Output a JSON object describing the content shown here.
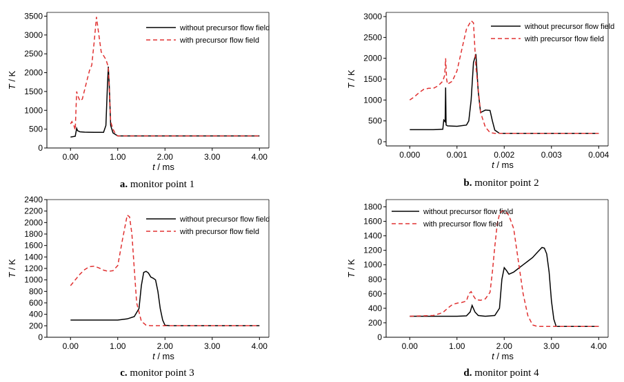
{
  "chart_data": [
    {
      "type": "line",
      "caption_letter": "a.",
      "caption_text": "monitor point 1",
      "xlabel_var": "t",
      "xlabel_unit": " / ms",
      "ylabel_var": "T",
      "ylabel_unit": " / K",
      "xlim": [
        -0.5,
        4.2
      ],
      "ylim": [
        0,
        3600
      ],
      "xticks": [
        0,
        1,
        2,
        3,
        4
      ],
      "xtick_labels": [
        "0.00",
        "1.00",
        "2.00",
        "3.00",
        "4.00"
      ],
      "yticks": [
        0,
        500,
        1000,
        1500,
        2000,
        2500,
        3000,
        3500
      ],
      "ytick_labels": [
        "0",
        "500",
        "1000",
        "1500",
        "2000",
        "2500",
        "3000",
        "3500"
      ],
      "legend": "top-right",
      "series": [
        {
          "name": "without precursor flow field",
          "color": "#000000",
          "dash": "solid",
          "x": [
            0,
            0.1,
            0.13,
            0.15,
            0.2,
            0.3,
            0.5,
            0.7,
            0.75,
            0.78,
            0.8,
            0.82,
            0.85,
            0.9,
            1.0,
            1.5,
            2.0,
            3.0,
            4.0
          ],
          "y": [
            290,
            310,
            520,
            460,
            430,
            420,
            415,
            415,
            600,
            1600,
            2160,
            1700,
            600,
            400,
            320,
            320,
            320,
            320,
            320
          ]
        },
        {
          "name": "with precursor flow field",
          "color": "#e03030",
          "dash": "dashed",
          "x": [
            0,
            0.03,
            0.07,
            0.1,
            0.13,
            0.15,
            0.2,
            0.25,
            0.3,
            0.35,
            0.4,
            0.45,
            0.5,
            0.55,
            0.6,
            0.65,
            0.7,
            0.75,
            0.8,
            0.85,
            0.9,
            0.95,
            1.0,
            1.5,
            2.0,
            3.0,
            4.0
          ],
          "y": [
            640,
            700,
            600,
            480,
            1500,
            1400,
            1250,
            1300,
            1550,
            1800,
            2050,
            2200,
            2800,
            3480,
            3000,
            2550,
            2450,
            2350,
            2150,
            700,
            500,
            380,
            320,
            320,
            320,
            320,
            320
          ]
        }
      ]
    },
    {
      "type": "line",
      "caption_letter": "b.",
      "caption_text": "monitor point 2",
      "xlabel_var": "t",
      "xlabel_unit": " / ms",
      "ylabel_var": "T",
      "ylabel_unit": " / K",
      "xlim": [
        -0.0005,
        0.0042
      ],
      "ylim": [
        -100,
        3100
      ],
      "xticks": [
        0,
        0.001,
        0.002,
        0.003,
        0.004
      ],
      "xtick_labels": [
        "0.000",
        "0.001",
        "0.002",
        "0.003",
        "0.004"
      ],
      "yticks": [
        0,
        500,
        1000,
        1500,
        2000,
        2500,
        3000
      ],
      "ytick_labels": [
        "0",
        "500",
        "1000",
        "1500",
        "2000",
        "2500",
        "3000"
      ],
      "legend": "top-right",
      "series": [
        {
          "name": "without precursor flow field",
          "color": "#000000",
          "dash": "solid",
          "x": [
            0,
            0.0005,
            0.0007,
            0.00072,
            0.00075,
            0.00076,
            0.00077,
            0.0008,
            0.001,
            0.0012,
            0.00125,
            0.0013,
            0.00135,
            0.0014,
            0.00145,
            0.0015,
            0.0016,
            0.0017,
            0.00175,
            0.0018,
            0.0019,
            0.002,
            0.003,
            0.004
          ],
          "y": [
            290,
            290,
            300,
            520,
            480,
            1300,
            400,
            380,
            370,
            400,
            500,
            1000,
            1900,
            2100,
            1200,
            700,
            760,
            750,
            500,
            280,
            200,
            200,
            200,
            200
          ]
        },
        {
          "name": "with precursor flow field",
          "color": "#e03030",
          "dash": "dashed",
          "x": [
            0,
            0.0001,
            0.0002,
            0.0003,
            0.0004,
            0.0005,
            0.0006,
            0.0007,
            0.00074,
            0.00076,
            0.00078,
            0.0008,
            0.0009,
            0.001,
            0.0011,
            0.0012,
            0.0013,
            0.00135,
            0.0014,
            0.0015,
            0.0016,
            0.0017,
            0.0018,
            0.002,
            0.003,
            0.004
          ],
          "y": [
            1000,
            1080,
            1180,
            1260,
            1280,
            1280,
            1340,
            1450,
            1600,
            2000,
            1500,
            1380,
            1450,
            1700,
            2200,
            2700,
            2900,
            2850,
            1800,
            700,
            350,
            220,
            200,
            200,
            200,
            200
          ]
        }
      ]
    },
    {
      "type": "line",
      "caption_letter": "c.",
      "caption_text": "monitor point 3",
      "xlabel_var": "t",
      "xlabel_unit": " / ms",
      "ylabel_var": "T",
      "ylabel_unit": " / K",
      "xlim": [
        -0.5,
        4.2
      ],
      "ylim": [
        0,
        2400
      ],
      "xticks": [
        0,
        1,
        2,
        3,
        4
      ],
      "xtick_labels": [
        "0.00",
        "1.00",
        "2.00",
        "3.00",
        "4.00"
      ],
      "yticks": [
        0,
        200,
        400,
        600,
        800,
        1000,
        1200,
        1400,
        1600,
        1800,
        2000,
        2200,
        2400
      ],
      "ytick_labels": [
        "0",
        "200",
        "400",
        "600",
        "800",
        "1000",
        "1200",
        "1400",
        "1600",
        "1800",
        "2000",
        "2200",
        "2400"
      ],
      "legend": "top-right",
      "series": [
        {
          "name": "without precursor flow field",
          "color": "#000000",
          "dash": "solid",
          "x": [
            0,
            0.5,
            1.0,
            1.2,
            1.35,
            1.45,
            1.5,
            1.55,
            1.6,
            1.65,
            1.7,
            1.75,
            1.8,
            1.85,
            1.9,
            1.95,
            2.0,
            2.1,
            3.0,
            4.0
          ],
          "y": [
            300,
            300,
            300,
            320,
            360,
            500,
            900,
            1130,
            1150,
            1120,
            1050,
            1030,
            1000,
            800,
            500,
            300,
            210,
            200,
            200,
            200
          ]
        },
        {
          "name": "with precursor flow field",
          "color": "#e03030",
          "dash": "dashed",
          "x": [
            0,
            0.1,
            0.2,
            0.3,
            0.4,
            0.5,
            0.6,
            0.7,
            0.8,
            0.9,
            1.0,
            1.1,
            1.2,
            1.25,
            1.3,
            1.35,
            1.4,
            1.5,
            1.6,
            1.7,
            2.0,
            3.0,
            4.0
          ],
          "y": [
            900,
            1000,
            1100,
            1180,
            1230,
            1240,
            1210,
            1170,
            1150,
            1160,
            1250,
            1700,
            2130,
            2100,
            1800,
            1200,
            600,
            280,
            210,
            200,
            200,
            200,
            200
          ]
        }
      ]
    },
    {
      "type": "line",
      "caption_letter": "d.",
      "caption_text": "monitor point 4",
      "xlabel_var": "t",
      "xlabel_unit": " / ms",
      "ylabel_var": "T",
      "ylabel_unit": " / K",
      "xlim": [
        -0.5,
        4.2
      ],
      "ylim": [
        0,
        1900
      ],
      "xticks": [
        0,
        1,
        2,
        3,
        4
      ],
      "xtick_labels": [
        "0.00",
        "1.00",
        "2.00",
        "3.00",
        "4.00"
      ],
      "yticks": [
        0,
        200,
        400,
        600,
        800,
        1000,
        1200,
        1400,
        1600,
        1800
      ],
      "ytick_labels": [
        "0",
        "200",
        "400",
        "600",
        "800",
        "1000",
        "1200",
        "1400",
        "1600",
        "1800"
      ],
      "legend": "top-left",
      "series": [
        {
          "name": "without precursor flow field",
          "color": "#000000",
          "dash": "solid",
          "x": [
            0,
            1.0,
            1.2,
            1.28,
            1.32,
            1.38,
            1.45,
            1.6,
            1.8,
            1.9,
            1.95,
            2.0,
            2.05,
            2.1,
            2.2,
            2.3,
            2.4,
            2.5,
            2.6,
            2.7,
            2.8,
            2.85,
            2.9,
            2.95,
            3.0,
            3.05,
            3.1,
            4.0
          ],
          "y": [
            290,
            290,
            295,
            350,
            440,
            350,
            300,
            290,
            300,
            400,
            800,
            960,
            920,
            870,
            900,
            950,
            1000,
            1050,
            1100,
            1170,
            1240,
            1230,
            1150,
            900,
            500,
            250,
            150,
            150
          ]
        },
        {
          "name": "with precursor flow field",
          "color": "#e03030",
          "dash": "dashed",
          "x": [
            0,
            0.5,
            0.7,
            0.8,
            0.9,
            1.0,
            1.1,
            1.2,
            1.25,
            1.3,
            1.35,
            1.4,
            1.5,
            1.6,
            1.7,
            1.75,
            1.8,
            1.85,
            1.9,
            1.95,
            2.0,
            2.05,
            2.1,
            2.2,
            2.3,
            2.4,
            2.5,
            2.6,
            2.7,
            3.0,
            4.0
          ],
          "y": [
            290,
            300,
            340,
            400,
            450,
            470,
            480,
            500,
            600,
            630,
            570,
            520,
            510,
            530,
            620,
            900,
            1250,
            1550,
            1700,
            1740,
            1750,
            1720,
            1680,
            1500,
            1050,
            600,
            300,
            170,
            150,
            150,
            150
          ]
        }
      ]
    }
  ]
}
